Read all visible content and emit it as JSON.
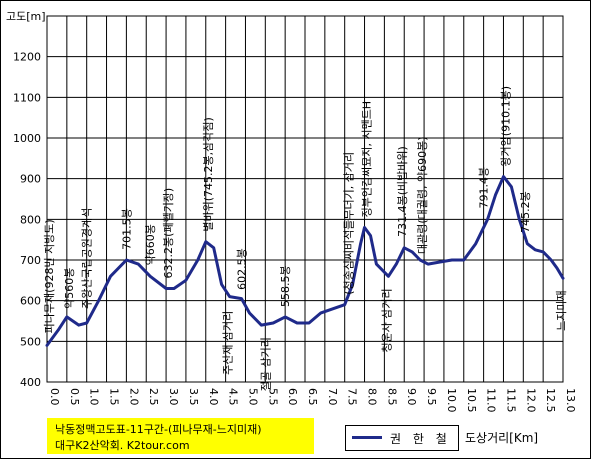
{
  "chart_data": {
    "type": "line",
    "ylabel": "고도[m]",
    "xlabel": "도상거리[Km]",
    "title_lines": [
      "낙동정맥고도표-11구간-(피나무재-느지미재)",
      "대구K2산악회. K2tour.com"
    ],
    "ylim": [
      400,
      1300
    ],
    "y_ticks": [
      "400",
      "500",
      "600",
      "700",
      "800",
      "900",
      "1000",
      "1100",
      "1200"
    ],
    "xlim": [
      0,
      13
    ],
    "x_ticks": [
      "0.0",
      "0.5",
      "1.0",
      "1.5",
      "2.0",
      "2.5",
      "3.0",
      "3.5",
      "4.0",
      "4.5",
      "5.0",
      "5.5",
      "6.0",
      "6.5",
      "7.0",
      "7.5",
      "8.0",
      "8.5",
      "9.0",
      "9.5",
      "10.0",
      "10.5",
      "11.0",
      "11.5",
      "12.0",
      "12.5",
      "13.0"
    ],
    "grid": true,
    "series": [
      {
        "name": "권 한 철",
        "color": "#1f2a8a",
        "x": [
          0,
          0.3,
          0.5,
          0.8,
          1.0,
          1.3,
          1.6,
          2.0,
          2.3,
          2.6,
          3.0,
          3.2,
          3.5,
          3.8,
          4.0,
          4.2,
          4.4,
          4.6,
          4.9,
          5.1,
          5.4,
          5.7,
          6.0,
          6.3,
          6.6,
          6.9,
          7.2,
          7.5,
          7.7,
          7.9,
          8.0,
          8.15,
          8.3,
          8.6,
          8.8,
          9.0,
          9.2,
          9.4,
          9.6,
          9.9,
          10.2,
          10.5,
          10.8,
          11.1,
          11.3,
          11.5,
          11.7,
          11.9,
          12.1,
          12.3,
          12.5,
          12.7,
          12.85,
          13.0
        ],
        "values": [
          490,
          530,
          560,
          540,
          545,
          600,
          660,
          700,
          690,
          660,
          630,
          630,
          650,
          700,
          745,
          730,
          640,
          610,
          605,
          570,
          540,
          545,
          560,
          545,
          545,
          570,
          580,
          590,
          640,
          740,
          780,
          760,
          690,
          660,
          690,
          730,
          720,
          700,
          690,
          695,
          700,
          700,
          740,
          800,
          860,
          905,
          880,
          800,
          740,
          725,
          720,
          700,
          680,
          655
        ]
      }
    ],
    "annotations": [
      {
        "text": "피나무재(928번 지방도)",
        "x": 0.05,
        "y": 505,
        "dir": "up"
      },
      {
        "text": "약560봉",
        "x": 0.55,
        "y": 565,
        "dir": "up"
      },
      {
        "text": "주왕산국립공원경계석",
        "x": 1.0,
        "y": 565,
        "dir": "up"
      },
      {
        "text": "701.5봉",
        "x": 2.0,
        "y": 710,
        "dir": "up"
      },
      {
        "text": "약660봉",
        "x": 2.6,
        "y": 672,
        "dir": "up"
      },
      {
        "text": "632.2봉(폐헬기장)",
        "x": 3.05,
        "y": 640,
        "dir": "up"
      },
      {
        "text": "별바위(745.2봉,삼각점)",
        "x": 4.05,
        "y": 755,
        "dir": "up"
      },
      {
        "text": "602.5봉",
        "x": 4.9,
        "y": 612,
        "dir": "up"
      },
      {
        "text": "558.5봉",
        "x": 6.0,
        "y": 570,
        "dir": "up"
      },
      {
        "text": "(청송심씨비석들무더기, 삼거리",
        "x": 7.6,
        "y": 600,
        "dir": "up"
      },
      {
        "text": "정부인김씨묘지, 시멘트H",
        "x": 8.05,
        "y": 790,
        "dir": "up"
      },
      {
        "text": "731.4봉(비밥바위)",
        "x": 8.95,
        "y": 742,
        "dir": "up"
      },
      {
        "text": "대관령(대궐령, 약690봉)",
        "x": 9.45,
        "y": 700,
        "dir": "up"
      },
      {
        "text": "791.4봉",
        "x": 11.0,
        "y": 812,
        "dir": "up"
      },
      {
        "text": "왕거암(910.1봉)",
        "x": 11.55,
        "y": 915,
        "dir": "up"
      },
      {
        "text": "745.2봉",
        "x": 12.05,
        "y": 752,
        "dir": "up"
      },
      {
        "text": "주산재 삼거리",
        "x": 4.55,
        "y": 595,
        "dir": "down"
      },
      {
        "text": "절골 삼거리",
        "x": 5.5,
        "y": 530,
        "dir": "down"
      },
      {
        "text": "청운사 삼거리",
        "x": 8.55,
        "y": 650,
        "dir": "down"
      },
      {
        "text": "느지미재",
        "x": 12.95,
        "y": 645,
        "dir": "down"
      }
    ]
  },
  "title": {
    "line1": "낙동정맥고도표-11구간-(피나무재-느지미재)",
    "line2": "대구K2산악회. K2tour.com"
  },
  "legend": {
    "label": "권 한 철"
  },
  "axis": {
    "ylabel": "고도[m]",
    "xlabel": "도상거리[Km]"
  }
}
